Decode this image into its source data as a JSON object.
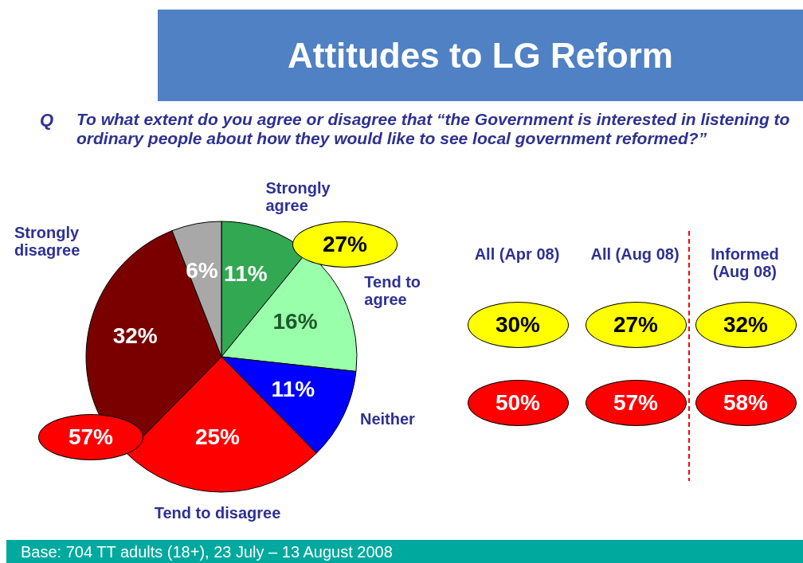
{
  "chart_data": {
    "type": "pie",
    "title": "Attitudes to LG Reform",
    "subtitle": "To what extent do you agree or disagree that “the Government is interested in listening to ordinary people about how they would like to see local government reformed?”",
    "categories": [
      "Strongly agree",
      "Tend to agree",
      "Neither",
      "Tend to disagree",
      "Strongly disagree",
      null
    ],
    "values": [
      11,
      16,
      11,
      25,
      32,
      6
    ],
    "colors": [
      "#33a852",
      "#99ffaa",
      "#0000ff",
      "#ff0000",
      "#7a0000",
      "#a8a8a8"
    ],
    "value_labels": [
      "11%",
      "16%",
      "11%",
      "25%",
      "32%",
      "6%"
    ],
    "annotations": [
      "Q",
      "27%",
      "57%",
      "All (Apr 08)",
      "All (Aug 08)",
      "Informed (Aug 08)",
      "30%",
      "27%",
      "32%",
      "50%",
      "57%",
      "58%",
      "Base: 704 TT adults (18+), 23 July – 13 August 2008"
    ]
  }
}
